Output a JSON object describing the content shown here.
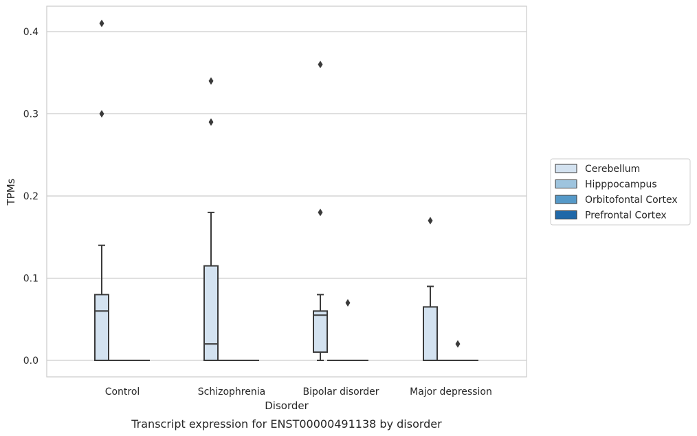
{
  "chart_data": {
    "type": "box",
    "caption": "Transcript expression for ENST00000491138 by disorder",
    "xlabel": "Disorder",
    "ylabel": "TPMs",
    "ylim": [
      -0.02,
      0.43
    ],
    "yticks": [
      0.0,
      0.1,
      0.2,
      0.3,
      0.4
    ],
    "ytick_labels": [
      "0.0",
      "0.1",
      "0.2",
      "0.3",
      "0.4"
    ],
    "grid": "horizontal",
    "legend_position": "right",
    "categories": [
      "Control",
      "Schizophrenia",
      "Bipolar disorder",
      "Major depression"
    ],
    "series": [
      {
        "name": "Cerebellum",
        "color": "#d3e2f0",
        "boxes": [
          {
            "whislo": 0.0,
            "q1": 0.0,
            "med": 0.06,
            "q3": 0.08,
            "whishi": 0.14,
            "fliers": [
              0.3,
              0.41
            ]
          },
          {
            "whislo": 0.0,
            "q1": 0.0,
            "med": 0.02,
            "q3": 0.115,
            "whishi": 0.18,
            "fliers": [
              0.29,
              0.34
            ]
          },
          {
            "whislo": 0.0,
            "q1": 0.01,
            "med": 0.055,
            "q3": 0.06,
            "whishi": 0.08,
            "fliers": [
              0.18,
              0.36
            ]
          },
          {
            "whislo": 0.0,
            "q1": 0.0,
            "med": 0.0,
            "q3": 0.065,
            "whishi": 0.09,
            "fliers": [
              0.17
            ]
          }
        ]
      },
      {
        "name": "Hipppocampus",
        "color": "#9ec4de",
        "boxes": [
          {
            "whislo": 0.0,
            "q1": 0.0,
            "med": 0.0,
            "q3": 0.0,
            "whishi": 0.0,
            "fliers": []
          },
          {
            "whislo": 0.0,
            "q1": 0.0,
            "med": 0.0,
            "q3": 0.0,
            "whishi": 0.0,
            "fliers": []
          },
          {
            "whislo": 0.0,
            "q1": 0.0,
            "med": 0.0,
            "q3": 0.0,
            "whishi": 0.0,
            "fliers": []
          },
          {
            "whislo": 0.0,
            "q1": 0.0,
            "med": 0.0,
            "q3": 0.0,
            "whishi": 0.0,
            "fliers": []
          }
        ]
      },
      {
        "name": "Orbitofontal Cortex",
        "color": "#5599c8",
        "boxes": [
          {
            "whislo": 0.0,
            "q1": 0.0,
            "med": 0.0,
            "q3": 0.0,
            "whishi": 0.0,
            "fliers": []
          },
          {
            "whislo": 0.0,
            "q1": 0.0,
            "med": 0.0,
            "q3": 0.0,
            "whishi": 0.0,
            "fliers": []
          },
          {
            "whislo": 0.0,
            "q1": 0.0,
            "med": 0.0,
            "q3": 0.0,
            "whishi": 0.0,
            "fliers": [
              0.07
            ]
          },
          {
            "whislo": 0.0,
            "q1": 0.0,
            "med": 0.0,
            "q3": 0.0,
            "whishi": 0.0,
            "fliers": [
              0.02
            ]
          }
        ]
      },
      {
        "name": "Prefrontal Cortex",
        "color": "#2068a8",
        "boxes": [
          {
            "whislo": 0.0,
            "q1": 0.0,
            "med": 0.0,
            "q3": 0.0,
            "whishi": 0.0,
            "fliers": []
          },
          {
            "whislo": 0.0,
            "q1": 0.0,
            "med": 0.0,
            "q3": 0.0,
            "whishi": 0.0,
            "fliers": []
          },
          {
            "whislo": 0.0,
            "q1": 0.0,
            "med": 0.0,
            "q3": 0.0,
            "whishi": 0.0,
            "fliers": []
          },
          {
            "whislo": 0.0,
            "q1": 0.0,
            "med": 0.0,
            "q3": 0.0,
            "whishi": 0.0,
            "fliers": []
          }
        ]
      }
    ]
  }
}
